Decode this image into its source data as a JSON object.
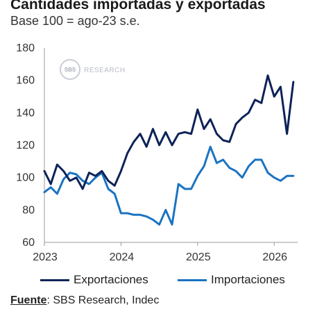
{
  "header": {
    "title": "Cantidades importadas y exportadas",
    "subtitle": "Base 100 = ago-23 s.e."
  },
  "watermark": {
    "text": "RESEARCH",
    "logo_text": "SBS"
  },
  "source": {
    "label": "Fuente",
    "text": ": SBS Research, Indec"
  },
  "colors": {
    "exportaciones": "#0d2258",
    "importaciones": "#1a73c2",
    "axis": "#999999"
  },
  "chart_data": {
    "type": "line",
    "title": "Cantidades importadas y exportadas",
    "subtitle": "Base 100 = ago-23 s.e.",
    "xlabel": "",
    "ylabel": "",
    "ylim": [
      60,
      180
    ],
    "y_ticks": [
      "60",
      "80",
      "100",
      "120",
      "140",
      "160",
      "180"
    ],
    "x_ticks": [
      "2023",
      "2024",
      "2025",
      "2026"
    ],
    "x_start": "2023-01",
    "frequency": "monthly",
    "grid": false,
    "legend_position": "bottom",
    "series": [
      {
        "name": "Exportaciones",
        "color": "#0d2258",
        "values": [
          104,
          96,
          108,
          104,
          98,
          100,
          93,
          103,
          101,
          104,
          98,
          95,
          104,
          115,
          122,
          127,
          119,
          130,
          120,
          128,
          120,
          127,
          128,
          127,
          142,
          130,
          136,
          127,
          123,
          122,
          133,
          137,
          140,
          148,
          146,
          163,
          150,
          156,
          127,
          159
        ]
      },
      {
        "name": "Importaciones",
        "color": "#1a73c2",
        "values": [
          91,
          94,
          90,
          99,
          103,
          102,
          98,
          96,
          100,
          103,
          93,
          90,
          78,
          78,
          77,
          77,
          76,
          74,
          71,
          80,
          71,
          96,
          93,
          93,
          101,
          107,
          119,
          109,
          111,
          106,
          104,
          100,
          107,
          111,
          111,
          103,
          100,
          98,
          101,
          101
        ]
      }
    ]
  }
}
